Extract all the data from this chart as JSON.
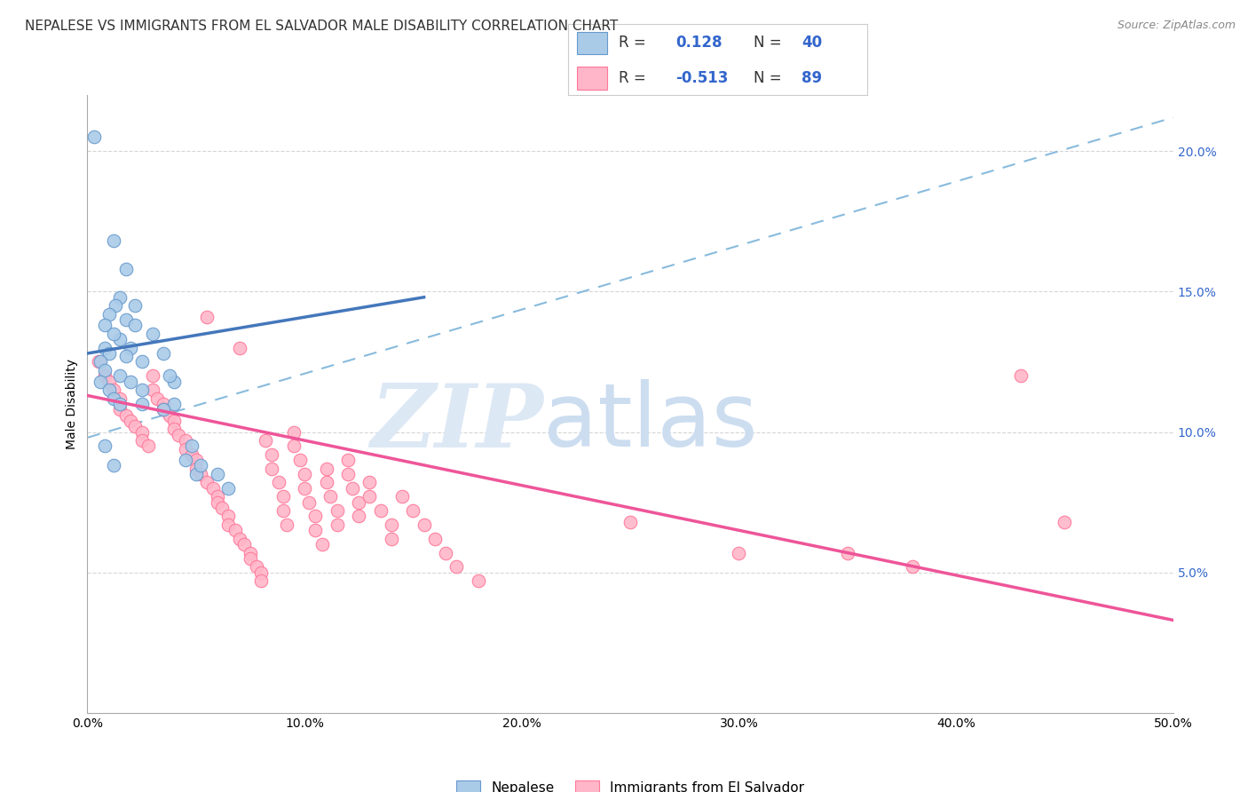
{
  "title": "NEPALESE VS IMMIGRANTS FROM EL SALVADOR MALE DISABILITY CORRELATION CHART",
  "source": "Source: ZipAtlas.com",
  "ylabel": "Male Disability",
  "xlim": [
    0.0,
    0.5
  ],
  "ylim": [
    0.0,
    0.22
  ],
  "xticks": [
    0.0,
    0.1,
    0.2,
    0.3,
    0.4,
    0.5
  ],
  "xticklabels": [
    "0.0%",
    "10.0%",
    "20.0%",
    "30.0%",
    "40.0%",
    "50.0%"
  ],
  "yticks_right": [
    0.05,
    0.1,
    0.15,
    0.2
  ],
  "ytick_right_labels": [
    "5.0%",
    "10.0%",
    "15.0%",
    "20.0%"
  ],
  "r_blue": "0.128",
  "n_blue": "40",
  "r_pink": "-0.513",
  "n_pink": "89",
  "scatter_blue": [
    [
      0.003,
      0.205
    ],
    [
      0.012,
      0.168
    ],
    [
      0.018,
      0.158
    ],
    [
      0.015,
      0.148
    ],
    [
      0.022,
      0.145
    ],
    [
      0.018,
      0.14
    ],
    [
      0.022,
      0.138
    ],
    [
      0.015,
      0.133
    ],
    [
      0.02,
      0.13
    ],
    [
      0.018,
      0.127
    ],
    [
      0.025,
      0.125
    ],
    [
      0.015,
      0.12
    ],
    [
      0.02,
      0.118
    ],
    [
      0.025,
      0.115
    ],
    [
      0.03,
      0.135
    ],
    [
      0.035,
      0.128
    ],
    [
      0.04,
      0.118
    ],
    [
      0.013,
      0.145
    ],
    [
      0.01,
      0.142
    ],
    [
      0.008,
      0.138
    ],
    [
      0.012,
      0.135
    ],
    [
      0.008,
      0.13
    ],
    [
      0.01,
      0.128
    ],
    [
      0.006,
      0.125
    ],
    [
      0.008,
      0.122
    ],
    [
      0.006,
      0.118
    ],
    [
      0.01,
      0.115
    ],
    [
      0.012,
      0.112
    ],
    [
      0.015,
      0.11
    ],
    [
      0.04,
      0.11
    ],
    [
      0.038,
      0.12
    ],
    [
      0.008,
      0.095
    ],
    [
      0.012,
      0.088
    ],
    [
      0.05,
      0.085
    ],
    [
      0.045,
      0.09
    ],
    [
      0.048,
      0.095
    ],
    [
      0.052,
      0.088
    ],
    [
      0.035,
      0.108
    ],
    [
      0.025,
      0.11
    ],
    [
      0.06,
      0.085
    ],
    [
      0.065,
      0.08
    ]
  ],
  "scatter_pink": [
    [
      0.005,
      0.125
    ],
    [
      0.008,
      0.12
    ],
    [
      0.01,
      0.118
    ],
    [
      0.012,
      0.115
    ],
    [
      0.015,
      0.112
    ],
    [
      0.015,
      0.108
    ],
    [
      0.018,
      0.106
    ],
    [
      0.02,
      0.104
    ],
    [
      0.022,
      0.102
    ],
    [
      0.025,
      0.1
    ],
    [
      0.025,
      0.097
    ],
    [
      0.028,
      0.095
    ],
    [
      0.03,
      0.12
    ],
    [
      0.03,
      0.115
    ],
    [
      0.032,
      0.112
    ],
    [
      0.035,
      0.11
    ],
    [
      0.035,
      0.108
    ],
    [
      0.038,
      0.106
    ],
    [
      0.04,
      0.104
    ],
    [
      0.04,
      0.101
    ],
    [
      0.042,
      0.099
    ],
    [
      0.045,
      0.097
    ],
    [
      0.045,
      0.094
    ],
    [
      0.048,
      0.092
    ],
    [
      0.05,
      0.09
    ],
    [
      0.05,
      0.087
    ],
    [
      0.052,
      0.085
    ],
    [
      0.055,
      0.141
    ],
    [
      0.055,
      0.082
    ],
    [
      0.058,
      0.08
    ],
    [
      0.06,
      0.077
    ],
    [
      0.06,
      0.075
    ],
    [
      0.062,
      0.073
    ],
    [
      0.065,
      0.07
    ],
    [
      0.065,
      0.067
    ],
    [
      0.068,
      0.065
    ],
    [
      0.07,
      0.13
    ],
    [
      0.07,
      0.062
    ],
    [
      0.072,
      0.06
    ],
    [
      0.075,
      0.057
    ],
    [
      0.075,
      0.055
    ],
    [
      0.078,
      0.052
    ],
    [
      0.08,
      0.05
    ],
    [
      0.08,
      0.047
    ],
    [
      0.082,
      0.097
    ],
    [
      0.085,
      0.092
    ],
    [
      0.085,
      0.087
    ],
    [
      0.088,
      0.082
    ],
    [
      0.09,
      0.077
    ],
    [
      0.09,
      0.072
    ],
    [
      0.092,
      0.067
    ],
    [
      0.095,
      0.1
    ],
    [
      0.095,
      0.095
    ],
    [
      0.098,
      0.09
    ],
    [
      0.1,
      0.085
    ],
    [
      0.1,
      0.08
    ],
    [
      0.102,
      0.075
    ],
    [
      0.105,
      0.07
    ],
    [
      0.105,
      0.065
    ],
    [
      0.108,
      0.06
    ],
    [
      0.11,
      0.087
    ],
    [
      0.11,
      0.082
    ],
    [
      0.112,
      0.077
    ],
    [
      0.115,
      0.072
    ],
    [
      0.115,
      0.067
    ],
    [
      0.12,
      0.09
    ],
    [
      0.12,
      0.085
    ],
    [
      0.122,
      0.08
    ],
    [
      0.125,
      0.075
    ],
    [
      0.125,
      0.07
    ],
    [
      0.13,
      0.082
    ],
    [
      0.13,
      0.077
    ],
    [
      0.135,
      0.072
    ],
    [
      0.14,
      0.067
    ],
    [
      0.14,
      0.062
    ],
    [
      0.145,
      0.077
    ],
    [
      0.15,
      0.072
    ],
    [
      0.155,
      0.067
    ],
    [
      0.16,
      0.062
    ],
    [
      0.165,
      0.057
    ],
    [
      0.17,
      0.052
    ],
    [
      0.18,
      0.047
    ],
    [
      0.25,
      0.068
    ],
    [
      0.3,
      0.057
    ],
    [
      0.35,
      0.057
    ],
    [
      0.38,
      0.052
    ],
    [
      0.43,
      0.12
    ],
    [
      0.45,
      0.068
    ]
  ],
  "trendline_blue_x0": 0.0,
  "trendline_blue_x1": 0.155,
  "trendline_blue_y0": 0.128,
  "trendline_blue_y1": 0.148,
  "trendline_dashed_x0": 0.0,
  "trendline_dashed_x1": 0.5,
  "trendline_dashed_y0": 0.098,
  "trendline_dashed_y1": 0.212,
  "trendline_pink_x0": 0.0,
  "trendline_pink_x1": 0.5,
  "trendline_pink_y0": 0.113,
  "trendline_pink_y1": 0.033,
  "color_blue_fill": "#aacbe8",
  "color_blue_edge": "#6699cc",
  "color_pink_fill": "#ffb6c8",
  "color_pink_edge": "#ff7799",
  "color_trendline_blue": "#4477bb",
  "color_trendline_pink": "#ee5599",
  "color_trendline_dashed": "#88bbdd",
  "grid_color": "#cccccc",
  "watermark_zip_color": "#dde8f5",
  "watermark_atlas_color": "#ccddf0",
  "title_color": "#333333",
  "right_tick_color": "#3366cc",
  "source_color": "#888888"
}
